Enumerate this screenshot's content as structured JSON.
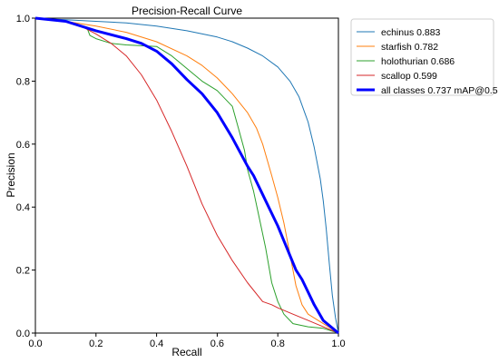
{
  "chart_data": {
    "type": "line",
    "title": "Precision-Recall Curve",
    "xlabel": "Recall",
    "ylabel": "Precision",
    "xlim": [
      0,
      1
    ],
    "ylim": [
      0,
      1
    ],
    "xticks": [
      "0.0",
      "0.2",
      "0.4",
      "0.6",
      "0.8",
      "1.0"
    ],
    "yticks": [
      "0.0",
      "0.2",
      "0.4",
      "0.6",
      "0.8",
      "1.0"
    ],
    "grid": false,
    "legend_position": "outside-top-right",
    "series": [
      {
        "name": "echinus 0.883",
        "color": "#1f77b4",
        "width": 1,
        "x": [
          0,
          0.1,
          0.2,
          0.3,
          0.4,
          0.5,
          0.6,
          0.65,
          0.7,
          0.75,
          0.8,
          0.84,
          0.87,
          0.9,
          0.92,
          0.94,
          0.95,
          0.96,
          0.97,
          0.98,
          0.99,
          1.0
        ],
        "y": [
          1.0,
          0.995,
          0.99,
          0.985,
          0.975,
          0.96,
          0.94,
          0.925,
          0.905,
          0.88,
          0.845,
          0.8,
          0.75,
          0.67,
          0.59,
          0.49,
          0.42,
          0.33,
          0.22,
          0.12,
          0.05,
          0.0
        ]
      },
      {
        "name": "starfish 0.782",
        "color": "#ff7f0e",
        "width": 1,
        "x": [
          0,
          0.1,
          0.2,
          0.3,
          0.4,
          0.5,
          0.55,
          0.6,
          0.65,
          0.7,
          0.73,
          0.75,
          0.78,
          0.8,
          0.82,
          0.84,
          0.86,
          0.88,
          0.9,
          0.95,
          1.0
        ],
        "y": [
          1.0,
          0.99,
          0.975,
          0.955,
          0.925,
          0.88,
          0.85,
          0.81,
          0.76,
          0.7,
          0.65,
          0.6,
          0.5,
          0.43,
          0.35,
          0.25,
          0.15,
          0.09,
          0.06,
          0.03,
          0.0
        ]
      },
      {
        "name": "holothurian 0.686",
        "color": "#2ca02c",
        "width": 1,
        "x": [
          0,
          0.1,
          0.17,
          0.18,
          0.2,
          0.25,
          0.3,
          0.4,
          0.45,
          0.5,
          0.55,
          0.6,
          0.65,
          0.67,
          0.69,
          0.7,
          0.72,
          0.74,
          0.76,
          0.78,
          0.8,
          0.82,
          0.85,
          0.9,
          0.95,
          1.0
        ],
        "y": [
          1.0,
          0.99,
          0.97,
          0.945,
          0.935,
          0.92,
          0.915,
          0.91,
          0.88,
          0.84,
          0.8,
          0.77,
          0.72,
          0.65,
          0.58,
          0.52,
          0.45,
          0.36,
          0.27,
          0.16,
          0.1,
          0.06,
          0.03,
          0.02,
          0.015,
          0.0
        ]
      },
      {
        "name": "scallop 0.599",
        "color": "#d62728",
        "width": 1,
        "x": [
          0,
          0.1,
          0.15,
          0.2,
          0.25,
          0.3,
          0.35,
          0.4,
          0.45,
          0.5,
          0.55,
          0.6,
          0.65,
          0.7,
          0.75,
          0.78,
          0.8,
          0.85,
          0.9,
          0.95,
          1.0
        ],
        "y": [
          1.0,
          0.99,
          0.975,
          0.95,
          0.92,
          0.88,
          0.82,
          0.74,
          0.64,
          0.53,
          0.41,
          0.31,
          0.23,
          0.16,
          0.1,
          0.09,
          0.08,
          0.06,
          0.04,
          0.02,
          0.0
        ]
      },
      {
        "name": "all classes 0.737 mAP@0.5",
        "color": "#0000ff",
        "width": 3,
        "x": [
          0,
          0.1,
          0.2,
          0.3,
          0.35,
          0.4,
          0.45,
          0.5,
          0.55,
          0.6,
          0.65,
          0.7,
          0.72,
          0.75,
          0.78,
          0.8,
          0.83,
          0.86,
          0.88,
          0.9,
          0.92,
          0.95,
          1.0
        ],
        "y": [
          1.0,
          0.99,
          0.96,
          0.935,
          0.92,
          0.895,
          0.855,
          0.805,
          0.76,
          0.7,
          0.62,
          0.53,
          0.5,
          0.44,
          0.38,
          0.34,
          0.27,
          0.2,
          0.17,
          0.13,
          0.09,
          0.04,
          0.0
        ]
      }
    ]
  }
}
